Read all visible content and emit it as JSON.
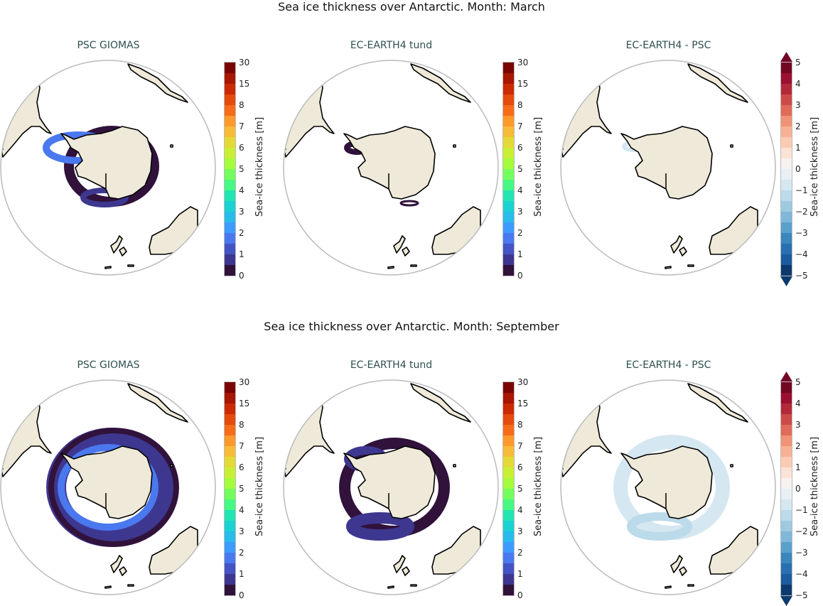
{
  "rows": [
    {
      "title": "Sea ice thickness over Antarctic. Month: March",
      "month": "March"
    },
    {
      "title": "Sea ice thickness over Antarctic. Month: September",
      "month": "September"
    }
  ],
  "panels": {
    "obs": "PSC GIOMAS",
    "model": "EC-EARTH4 tund",
    "diff": "EC-EARTH4 -  PSC"
  },
  "colorbar_label": "Sea-ice thickness [m]",
  "thickness_ticks": [
    "0",
    "1",
    "2",
    "3",
    "4",
    "5",
    "6",
    "7",
    "8",
    "15",
    "30"
  ],
  "diff_ticks": [
    "−5",
    "−4",
    "−3",
    "−2",
    "−1",
    "0",
    "1",
    "2",
    "3",
    "4",
    "5"
  ],
  "thickness_colors": [
    "#30123b",
    "#3e378f",
    "#4454c4",
    "#4a78ef",
    "#3e9bfe",
    "#28bceb",
    "#1ad2d2",
    "#22e5b3",
    "#46f884",
    "#73fe5e",
    "#a4fc3c",
    "#c9ef34",
    "#e4d936",
    "#f8bb37",
    "#fe992c",
    "#f66c19",
    "#e54b0d",
    "#cb2a04",
    "#a91601",
    "#7a0403"
  ],
  "diff_colors": [
    "#0c3a6e",
    "#1c5b9e",
    "#2a70b1",
    "#3a87bd",
    "#5aa0cd",
    "#7fb8da",
    "#9ecae1",
    "#bbdaea",
    "#d5e7f1",
    "#e8f0f5",
    "#f7f2ef",
    "#fbe3d6",
    "#fbcbb3",
    "#f8b194",
    "#f19376",
    "#e06b59",
    "#cc4b4a",
    "#b5283a",
    "#9b1030",
    "#740724"
  ],
  "land_color": "#efe9d9",
  "ocean_color": "#ffffff"
}
